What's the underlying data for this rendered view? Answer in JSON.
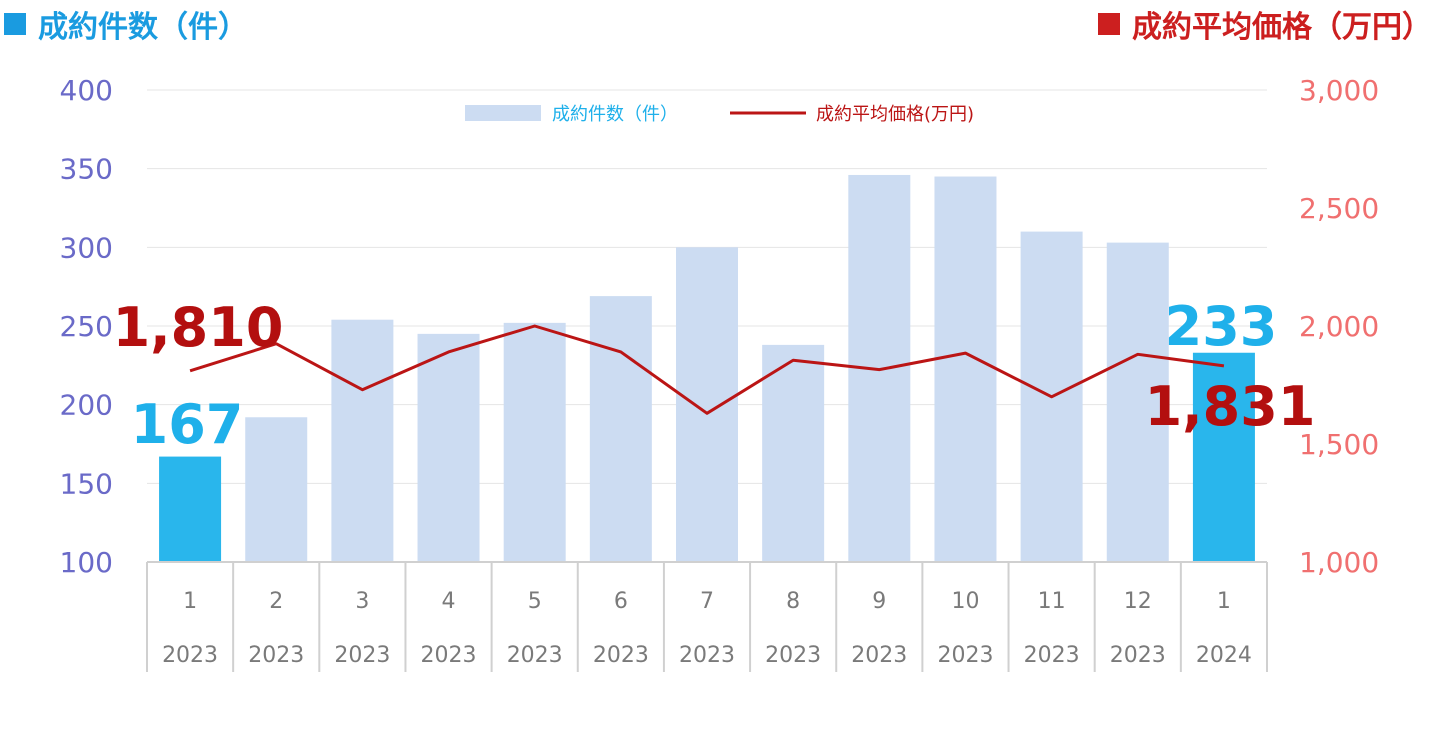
{
  "headers": {
    "left": "成約件数（件）",
    "right": "成約平均価格（万円）"
  },
  "colors": {
    "bar": "#ccdcf2",
    "bar_highlight": "#29b6ec",
    "line": "#bb1515",
    "left_axis": "#6a6ac8",
    "right_axis": "#f07070",
    "count_label": "#1fb0ea",
    "price_label": "#b30f0f"
  },
  "chart_data": {
    "type": "bar+line",
    "categories": [
      {
        "month": "1",
        "year": "2023"
      },
      {
        "month": "2",
        "year": "2023"
      },
      {
        "month": "3",
        "year": "2023"
      },
      {
        "month": "4",
        "year": "2023"
      },
      {
        "month": "5",
        "year": "2023"
      },
      {
        "month": "6",
        "year": "2023"
      },
      {
        "month": "7",
        "year": "2023"
      },
      {
        "month": "8",
        "year": "2023"
      },
      {
        "month": "9",
        "year": "2023"
      },
      {
        "month": "10",
        "year": "2023"
      },
      {
        "month": "11",
        "year": "2023"
      },
      {
        "month": "12",
        "year": "2023"
      },
      {
        "month": "1",
        "year": "2024"
      }
    ],
    "series": [
      {
        "name": "成約件数（件）",
        "type": "bar",
        "axis": "left",
        "values": [
          167,
          192,
          254,
          245,
          252,
          269,
          300,
          238,
          346,
          345,
          310,
          303,
          233
        ],
        "highlight": [
          0,
          12
        ]
      },
      {
        "name": "成約平均価格(万円)",
        "type": "line",
        "axis": "right",
        "values": [
          1810,
          1925,
          1730,
          1890,
          2000,
          1890,
          1630,
          1855,
          1815,
          1885,
          1700,
          1880,
          1831
        ]
      }
    ],
    "left_axis": {
      "ylim": [
        100,
        400
      ],
      "ticks": [
        "400",
        "350",
        "300",
        "250",
        "200",
        "150",
        "100"
      ]
    },
    "right_axis": {
      "ylim": [
        1000,
        3000
      ],
      "ticks": [
        "3,000",
        "2,500",
        "2,000",
        "1,500",
        "1,000"
      ]
    },
    "data_labels": {
      "count_first": "167",
      "count_last": "233",
      "price_first": "1,810",
      "price_last": "1,831"
    },
    "legend": {
      "position": "top-center"
    },
    "grid": true
  }
}
